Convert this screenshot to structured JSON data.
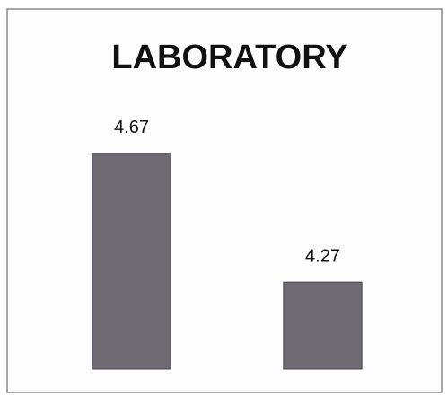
{
  "chart_data": {
    "type": "bar",
    "title": "LABORATORY",
    "categories": [
      null,
      null
    ],
    "values": [
      4.67,
      4.27
    ],
    "color": "#6e6a72",
    "ylim": [
      4,
      4.8
    ]
  }
}
